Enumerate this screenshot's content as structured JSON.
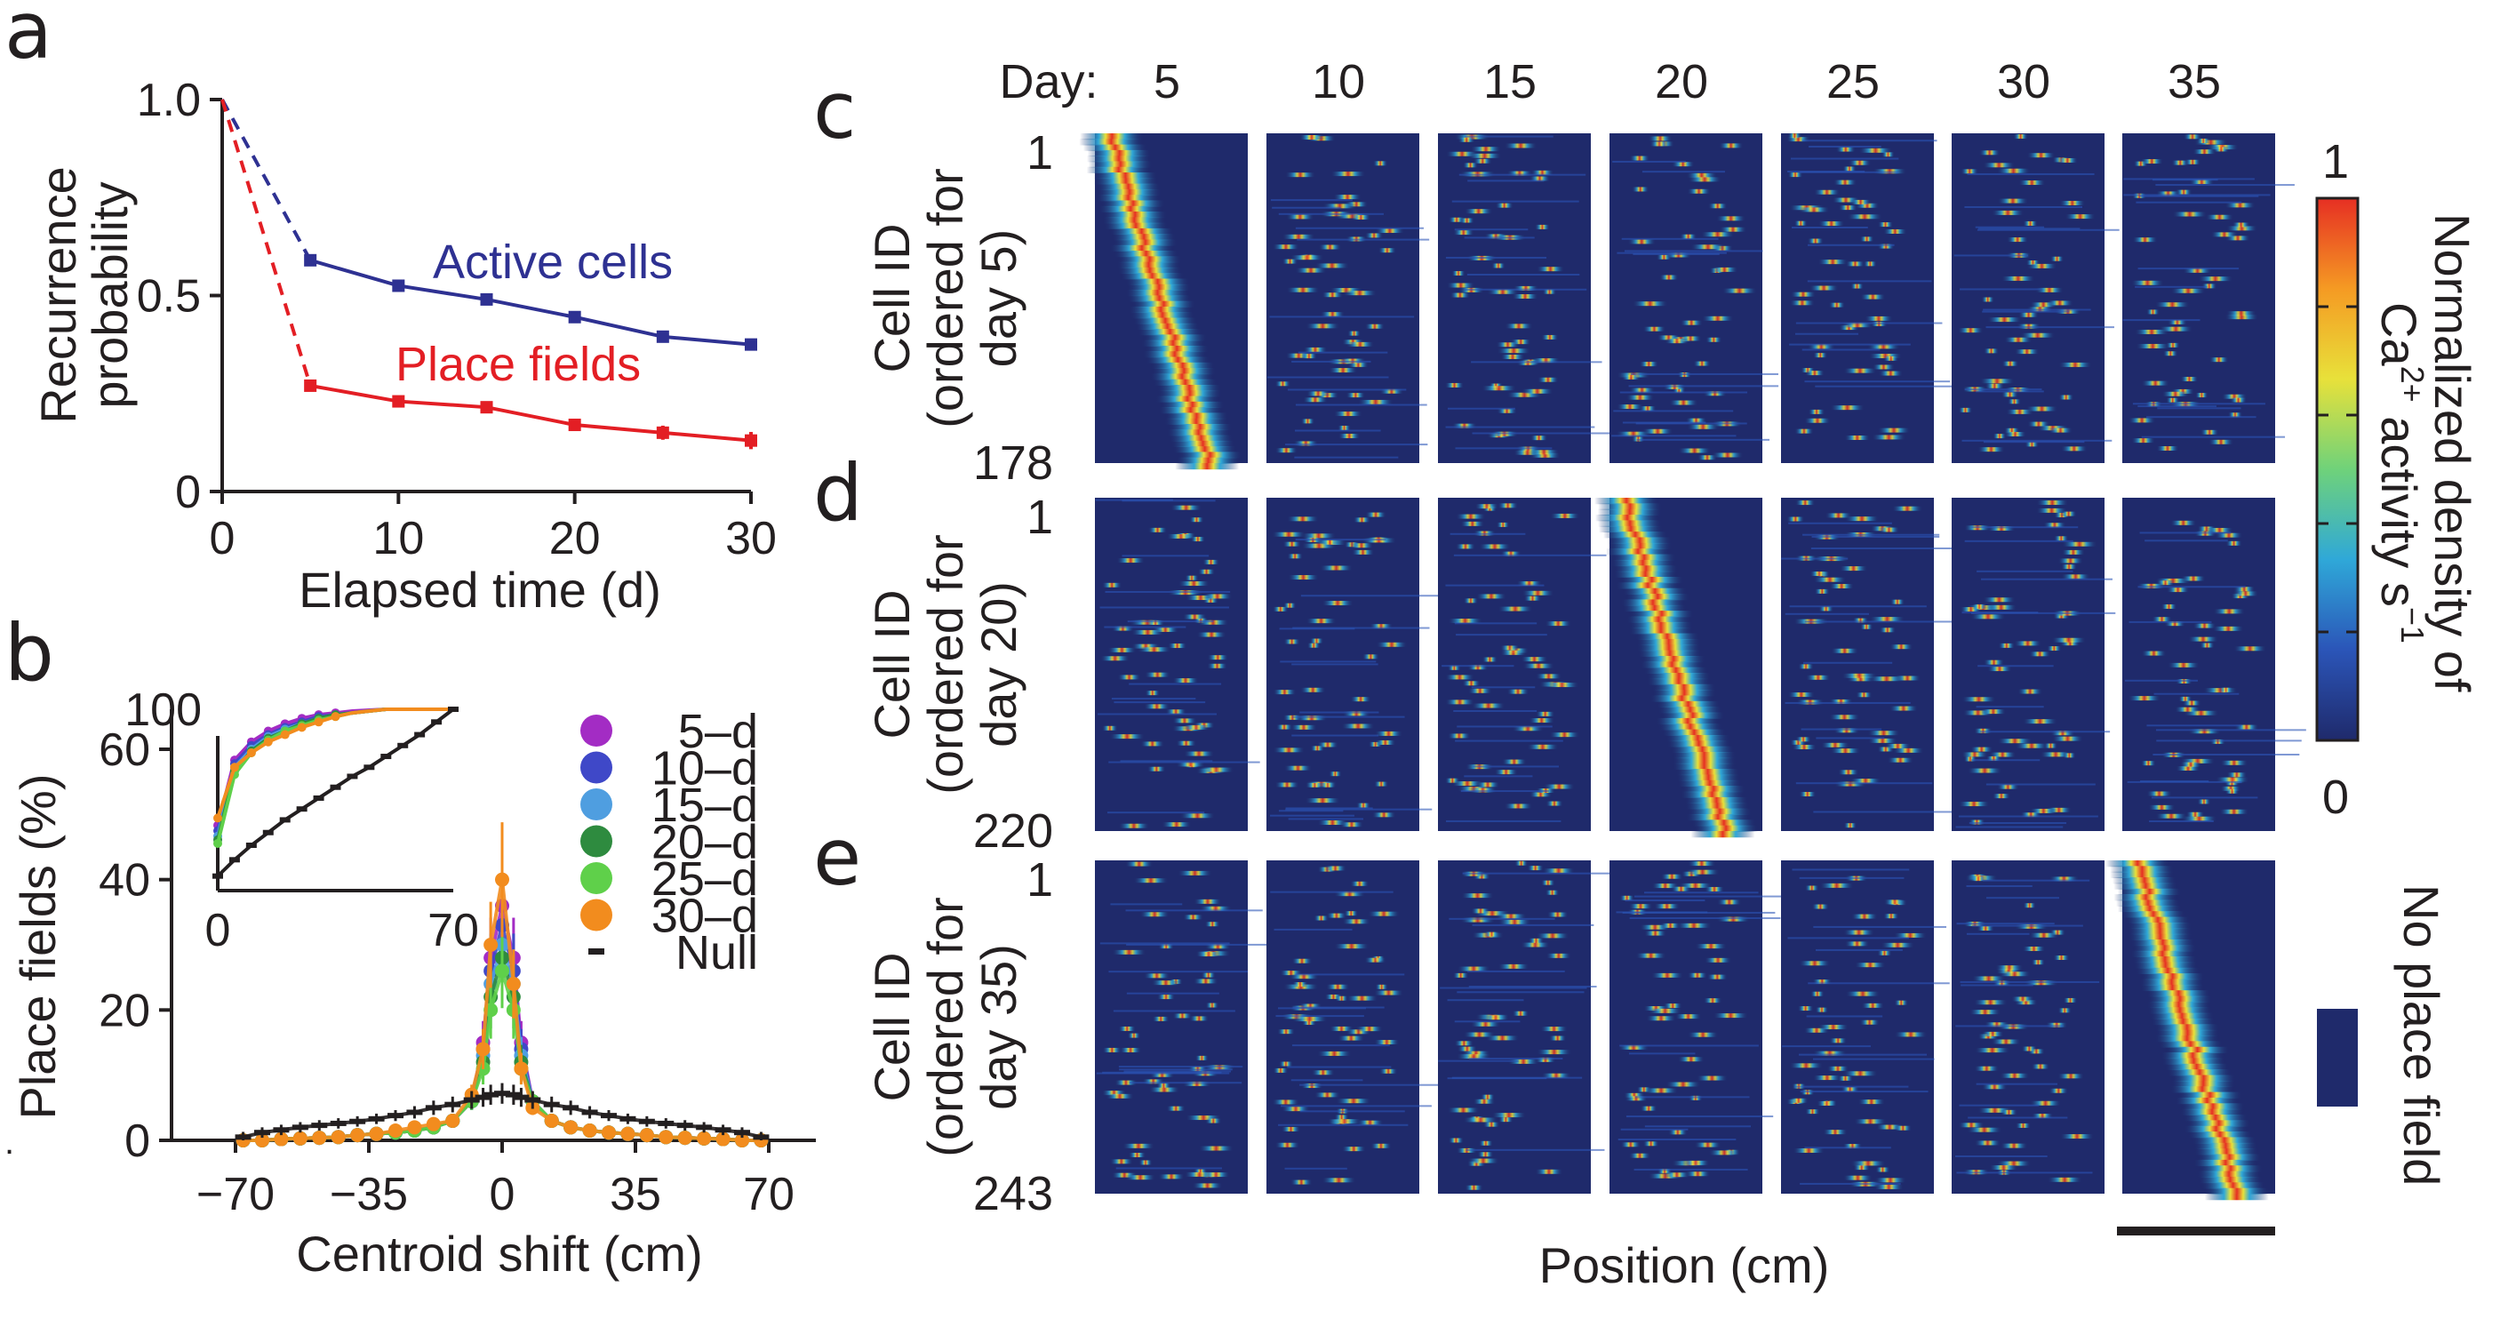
{
  "panels": {
    "a": "a",
    "b": "b",
    "c": "c",
    "d": "d",
    "e": "e",
    "stray_mark": "."
  },
  "chart_data": [
    {
      "panel": "a",
      "type": "line",
      "xlabel": "Elapsed time (d)",
      "ylabel": "Recurrence probability",
      "ylabel_lines": [
        "Recurrence",
        "probability"
      ],
      "xlim": [
        0,
        30
      ],
      "ylim": [
        0,
        1
      ],
      "xticks": [
        "0",
        "10",
        "20",
        "30"
      ],
      "yticks": [
        "0",
        "0.5",
        "1.0"
      ],
      "series": [
        {
          "name": "Active cells",
          "color": "#2e3192",
          "x": [
            0,
            5,
            10,
            15,
            20,
            25,
            30
          ],
          "y": [
            1.0,
            0.59,
            0.525,
            0.49,
            0.445,
            0.395,
            0.375
          ],
          "err": [
            0,
            0.008,
            0.008,
            0.008,
            0.01,
            0.012,
            0.015
          ],
          "dashed_first_segment": true
        },
        {
          "name": "Place fields",
          "color": "#e31e24",
          "x": [
            0,
            5,
            10,
            15,
            20,
            25,
            30
          ],
          "y": [
            1.0,
            0.27,
            0.23,
            0.215,
            0.17,
            0.15,
            0.13
          ],
          "err": [
            0,
            0.012,
            0.012,
            0.015,
            0.015,
            0.018,
            0.022
          ],
          "dashed_first_segment": true
        }
      ]
    },
    {
      "panel": "b",
      "type": "line",
      "xlabel": "Centroid shift (cm)",
      "ylabel": "Place fields (%)",
      "xlim": [
        -70,
        70
      ],
      "ylim": [
        0,
        60
      ],
      "xticks": [
        "−70",
        "−35",
        "0",
        "35",
        "70"
      ],
      "yticks": [
        "0",
        "20",
        "40",
        "60"
      ],
      "x": [
        -68,
        -63,
        -58,
        -53,
        -48,
        -43,
        -38,
        -33,
        -28,
        -23,
        -18,
        -13,
        -8,
        -5,
        -3,
        0,
        3,
        5,
        8,
        13,
        18,
        23,
        28,
        33,
        38,
        43,
        48,
        53,
        58,
        63,
        68
      ],
      "series": [
        {
          "name": "5–d",
          "color": "#a32cc4",
          "y": [
            0,
            0,
            0.2,
            0.3,
            0.4,
            0.5,
            0.8,
            1,
            1.2,
            1.5,
            2,
            3,
            6,
            15,
            28,
            36,
            28,
            15,
            6,
            3,
            2,
            1.5,
            1.2,
            1,
            0.8,
            0.5,
            0.4,
            0.3,
            0.2,
            0,
            0
          ]
        },
        {
          "name": "10–d",
          "color": "#3f48c8",
          "y": [
            0,
            0,
            0.2,
            0.3,
            0.4,
            0.5,
            0.8,
            1,
            1.2,
            1.5,
            2,
            3,
            6,
            14,
            26,
            33,
            26,
            14,
            6,
            3,
            2,
            1.5,
            1.2,
            1,
            0.8,
            0.5,
            0.4,
            0.3,
            0.2,
            0,
            0
          ]
        },
        {
          "name": "15–d",
          "color": "#4f9ee0",
          "y": [
            0,
            0,
            0.2,
            0.3,
            0.4,
            0.5,
            0.8,
            1,
            1.2,
            1.5,
            2,
            3,
            6,
            13,
            24,
            30,
            24,
            13,
            6,
            3,
            2,
            1.5,
            1.2,
            1,
            0.8,
            0.5,
            0.4,
            0.3,
            0.2,
            0,
            0
          ]
        },
        {
          "name": "20–d",
          "color": "#2e8b3f",
          "y": [
            0,
            0,
            0.2,
            0.3,
            0.4,
            0.5,
            0.8,
            1,
            1.2,
            1.5,
            2,
            3,
            6,
            12,
            22,
            28,
            22,
            12,
            6,
            3,
            2,
            1.5,
            1.2,
            1,
            0.8,
            0.5,
            0.4,
            0.3,
            0.2,
            0,
            0
          ]
        },
        {
          "name": "25–d",
          "color": "#5fd04a",
          "y": [
            0,
            0,
            0.2,
            0.3,
            0.4,
            0.5,
            0.8,
            1,
            1.2,
            1.5,
            2,
            3,
            6,
            11,
            20,
            26,
            20,
            11,
            6,
            3,
            2,
            1.5,
            1.2,
            1,
            0.8,
            0.5,
            0.4,
            0.3,
            0.2,
            0,
            0
          ]
        },
        {
          "name": "30–d",
          "color": "#f28c1e",
          "y": [
            0,
            0,
            0.2,
            0.3,
            0.4,
            0.5,
            0.8,
            1,
            1.5,
            2,
            2.5,
            3,
            7,
            14,
            30,
            40,
            24,
            11,
            5,
            3,
            2,
            1.5,
            1.2,
            1,
            0.8,
            0.5,
            0.4,
            0.3,
            0.2,
            0,
            0
          ]
        },
        {
          "name": "Null",
          "color": "#231f20",
          "y": [
            0.5,
            1.2,
            1.6,
            2,
            2.3,
            2.6,
            2.9,
            3.3,
            3.8,
            4.3,
            5,
            5.5,
            6.2,
            6.6,
            7,
            7.2,
            7,
            6.6,
            6.2,
            5.5,
            5,
            4.3,
            3.8,
            3.3,
            2.9,
            2.6,
            2.3,
            2,
            1.6,
            1.2,
            0.5
          ]
        }
      ],
      "legend": [
        "5–d",
        "10–d",
        "15–d",
        "20–d",
        "25–d",
        "30–d",
        "Null"
      ],
      "inset": {
        "xlim": [
          0,
          70
        ],
        "ylim": [
          0,
          100
        ],
        "xticks": [
          "0",
          "70"
        ],
        "yticks": [
          "100"
        ],
        "x": [
          0,
          5,
          10,
          15,
          20,
          25,
          30,
          35,
          40,
          45,
          50,
          55,
          60,
          65,
          70
        ],
        "series": [
          {
            "name": "5–d",
            "y": [
              36,
              72,
              82,
              88,
              92,
              95,
              97,
              98,
              99,
              99.5,
              100,
              100,
              100,
              100,
              100
            ]
          },
          {
            "name": "10–d",
            "y": [
              33,
              70,
              80,
              86,
              90,
              93,
              96,
              97,
              98,
              99,
              100,
              100,
              100,
              100,
              100
            ]
          },
          {
            "name": "15–d",
            "y": [
              30,
              68,
              78,
              85,
              89,
              92,
              95,
              97,
              98,
              99,
              100,
              100,
              100,
              100,
              100
            ]
          },
          {
            "name": "20–d",
            "y": [
              28,
              66,
              77,
              84,
              88,
              92,
              95,
              97,
              98,
              99,
              100,
              100,
              100,
              100,
              100
            ]
          },
          {
            "name": "25–d",
            "y": [
              26,
              64,
              76,
              83,
              88,
              91,
              94,
              96,
              98,
              99,
              100,
              100,
              100,
              100,
              100
            ]
          },
          {
            "name": "30–d",
            "y": [
              40,
              68,
              76,
              82,
              86,
              90,
              93,
              96,
              98,
              99,
              100,
              100,
              100,
              100,
              100
            ]
          },
          {
            "name": "Null",
            "y": [
              8,
              17,
              25,
              32,
              39,
              45,
              51,
              57,
              63,
              68,
              74,
              80,
              86,
              93,
              100
            ]
          }
        ]
      }
    },
    {
      "panel": "c–e",
      "type": "heatmap",
      "day_label": "Day:",
      "days": [
        "5",
        "10",
        "15",
        "20",
        "25",
        "30",
        "35"
      ],
      "xlabel": "Position (cm)",
      "ylabel_lines": [
        "Cell ID",
        "(ordered for"
      ],
      "rows": [
        {
          "panel": "c",
          "order_day_label": "day 5)",
          "ordered_day_index": 0,
          "cell_first": "1",
          "cell_last": "178"
        },
        {
          "panel": "d",
          "order_day_label": "day 20)",
          "ordered_day_index": 3,
          "cell_first": "1",
          "cell_last": "220"
        },
        {
          "panel": "e",
          "order_day_label": "day 35)",
          "ordered_day_index": 6,
          "cell_first": "1",
          "cell_last": "243"
        }
      ],
      "colorbar": {
        "max": "1",
        "min": "0",
        "title_line1": "Normalized density of",
        "title_line2_base": "Ca",
        "title_line2_sup": "2+",
        "title_line2_rest": " activity s",
        "title_line2_exp": "−1",
        "no_field_label": "No place field",
        "colors": [
          "#1f2a6b",
          "#2b55b8",
          "#2fa8d8",
          "#6fd27a",
          "#e8e13a",
          "#f59a23",
          "#e62f23"
        ]
      },
      "background_color": "#1f2a6b"
    }
  ]
}
